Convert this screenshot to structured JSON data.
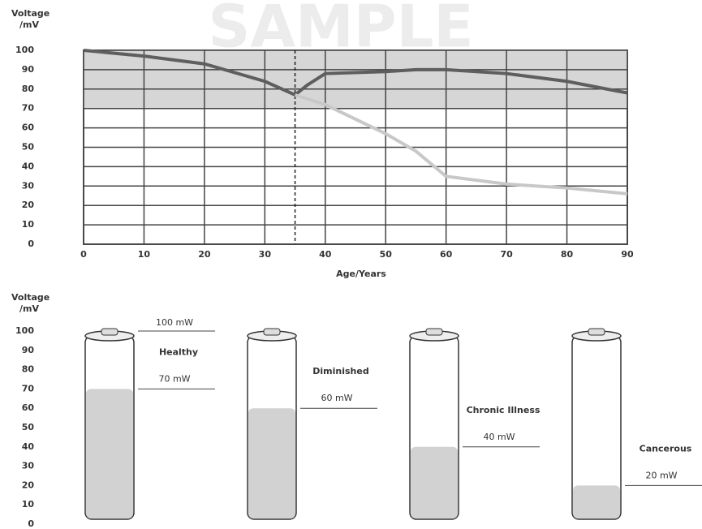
{
  "chart_data": [
    {
      "type": "line",
      "watermark": "SAMPLE",
      "y_label": "Voltage /mV",
      "x_label": "Age/Years",
      "x": [
        0,
        10,
        20,
        30,
        35,
        37,
        40,
        50,
        55,
        60,
        70,
        80,
        90
      ],
      "series": [
        {
          "color": "#5e5e5e",
          "values": [
            100,
            97,
            93,
            84,
            77,
            82,
            88,
            89,
            90,
            90,
            88,
            84,
            78
          ]
        },
        {
          "color": "#c8c8c8",
          "values": [
            null,
            null,
            null,
            null,
            77,
            75,
            72,
            57,
            48,
            35,
            31,
            29,
            26
          ]
        }
      ],
      "xlim": [
        0,
        90
      ],
      "xticks": [
        0,
        10,
        20,
        30,
        40,
        50,
        60,
        70,
        80,
        90
      ],
      "ylim": [
        0,
        100
      ],
      "yticks": [
        0,
        10,
        20,
        30,
        40,
        50,
        60,
        70,
        80,
        90,
        100
      ],
      "shaded_band": [
        70,
        100
      ],
      "reference_x": 35,
      "grid": true
    },
    {
      "type": "battery",
      "y_label": "Voltage /mV",
      "categories": [
        "Healthy",
        "Diminished",
        "Chronic Illness",
        "Cancerous"
      ],
      "values": [
        70,
        60,
        40,
        20
      ],
      "value_labels": [
        "70 mW",
        "60 mW",
        "40 mW",
        "20 mW"
      ],
      "reference": {
        "value": 100,
        "label": "100 mW"
      },
      "color": "#d2d2d2",
      "ylim": [
        0,
        100
      ],
      "yticks": [
        0,
        10,
        20,
        30,
        40,
        50,
        60,
        70,
        80,
        90,
        100
      ]
    }
  ]
}
